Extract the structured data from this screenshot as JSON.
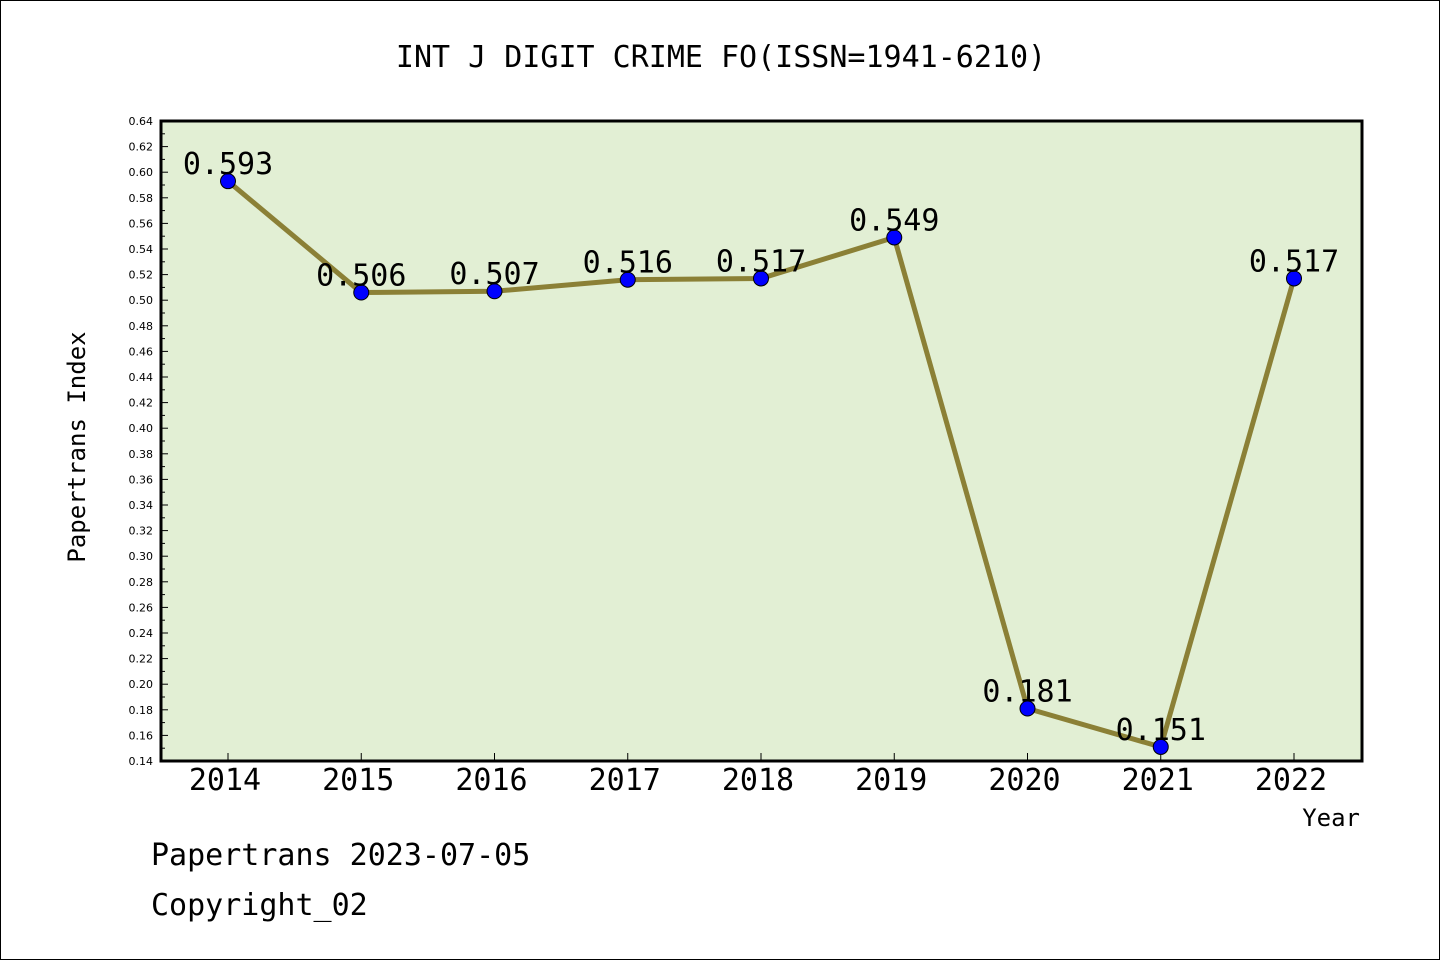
{
  "chart_data": {
    "type": "line",
    "title": "INT J DIGIT CRIME FO(ISSN=1941-6210)",
    "xlabel": "Year",
    "ylabel": "Papertrans Index",
    "categories": [
      "2014",
      "2015",
      "2016",
      "2017",
      "2018",
      "2019",
      "2020",
      "2021",
      "2022"
    ],
    "series": [
      {
        "values": [
          0.593,
          0.506,
          0.507,
          0.516,
          0.517,
          0.549,
          0.181,
          0.151,
          0.517
        ],
        "labels": [
          "0.593",
          "0.506",
          "0.507",
          "0.516",
          "0.517",
          "0.549",
          "0.181",
          "0.151",
          "0.517"
        ]
      }
    ],
    "ylim": [
      0.14,
      0.64
    ],
    "yticks": [
      "0.14",
      "0.16",
      "0.18",
      "0.20",
      "0.22",
      "0.24",
      "0.26",
      "0.28",
      "0.30",
      "0.32",
      "0.34",
      "0.36",
      "0.38",
      "0.40",
      "0.42",
      "0.44",
      "0.46",
      "0.48",
      "0.50",
      "0.52",
      "0.54",
      "0.56",
      "0.58",
      "0.60",
      "0.62",
      "0.64"
    ],
    "grid": false,
    "colors": {
      "plot_background": "#e2efd4",
      "line": "#8b8036",
      "marker": "#0000ff"
    }
  },
  "footer": {
    "line1": "Papertrans 2023-07-05",
    "line2": "Copyright_02"
  }
}
